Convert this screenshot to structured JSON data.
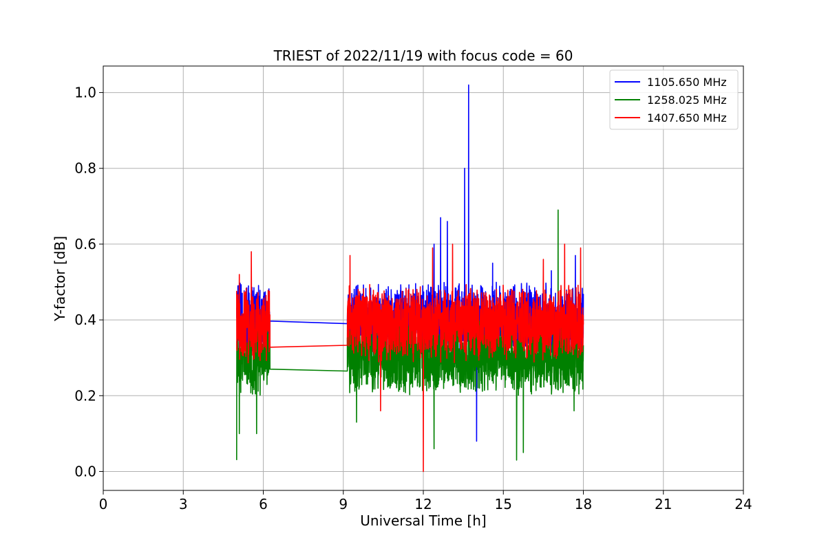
{
  "chart_data": {
    "type": "line",
    "title": "TRIEST of 2022/11/19 with focus code = 60",
    "xlabel": "Universal Time [h]",
    "ylabel": "Y-factor [dB]",
    "xlim": [
      0,
      24
    ],
    "ylim": [
      -0.05,
      1.07
    ],
    "xticks": [
      0,
      3,
      6,
      9,
      12,
      15,
      18,
      21,
      24
    ],
    "yticks": [
      0.0,
      0.2,
      0.4,
      0.6,
      0.8,
      1.0
    ],
    "xtick_labels": [
      "0",
      "3",
      "6",
      "9",
      "12",
      "15",
      "18",
      "21",
      "24"
    ],
    "ytick_labels": [
      "0.0",
      "0.2",
      "0.4",
      "0.6",
      "0.8",
      "1.0"
    ],
    "grid": true,
    "legend_position": "top-right",
    "observation_windows": [
      [
        5.0,
        6.25
      ],
      [
        9.15,
        18.0
      ]
    ],
    "series": [
      {
        "name": "1105.650 MHz",
        "color": "#0000ff",
        "base": 0.4,
        "spread": 0.075,
        "gap_bridge": [
          [
            6.25,
            0.397
          ],
          [
            9.15,
            0.39
          ]
        ],
        "extremes": [
          [
            5.05,
            0.49
          ],
          [
            10.3,
            0.23
          ],
          [
            12.4,
            0.6
          ],
          [
            12.65,
            0.67
          ],
          [
            12.9,
            0.66
          ],
          [
            13.55,
            0.8
          ],
          [
            13.7,
            1.02
          ],
          [
            14.0,
            0.08
          ],
          [
            14.6,
            0.55
          ],
          [
            16.8,
            0.53
          ],
          [
            17.7,
            0.57
          ]
        ]
      },
      {
        "name": "1258.025 MHz",
        "color": "#008000",
        "base": 0.3,
        "spread": 0.075,
        "gap_bridge": [
          [
            6.25,
            0.27
          ],
          [
            9.15,
            0.265
          ]
        ],
        "extremes": [
          [
            5.0,
            0.03
          ],
          [
            5.1,
            0.1
          ],
          [
            5.75,
            0.1
          ],
          [
            9.5,
            0.13
          ],
          [
            12.4,
            0.06
          ],
          [
            13.3,
            0.44
          ],
          [
            15.5,
            0.03
          ],
          [
            15.75,
            0.05
          ],
          [
            17.05,
            0.69
          ],
          [
            17.65,
            0.16
          ]
        ]
      },
      {
        "name": "1407.650 MHz",
        "color": "#ff0000",
        "base": 0.39,
        "spread": 0.075,
        "gap_bridge": [
          [
            6.25,
            0.328
          ],
          [
            9.15,
            0.333
          ]
        ],
        "extremes": [
          [
            5.55,
            0.58
          ],
          [
            5.1,
            0.52
          ],
          [
            9.25,
            0.57
          ],
          [
            10.4,
            0.16
          ],
          [
            12.0,
            0.0
          ],
          [
            12.35,
            0.59
          ],
          [
            13.1,
            0.6
          ],
          [
            16.5,
            0.56
          ],
          [
            17.9,
            0.59
          ],
          [
            17.3,
            0.6
          ]
        ]
      }
    ]
  }
}
